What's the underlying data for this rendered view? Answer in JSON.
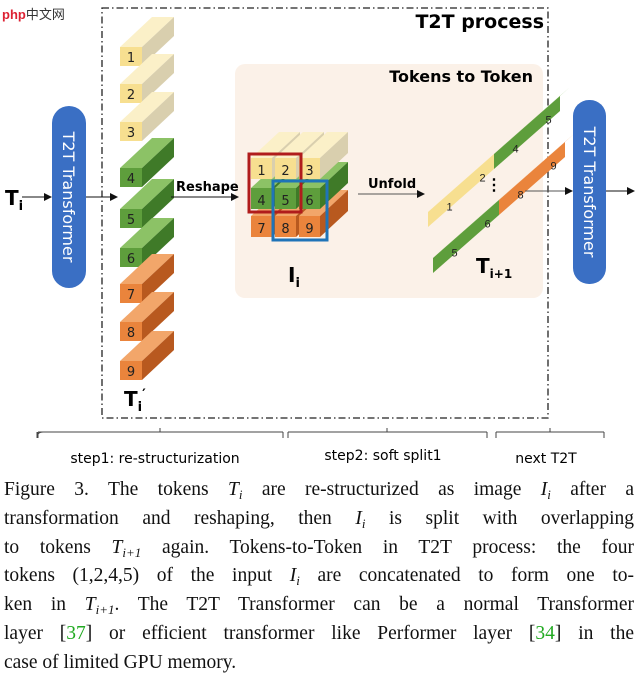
{
  "watermark": {
    "brand": "php",
    "site": "中文网"
  },
  "figure": {
    "process_title": "T2T process",
    "panel_title": "Tokens to Token",
    "input_label": "T",
    "input_sub": "i",
    "transformer_left": "T2T Transformer",
    "transformer_right": "T2T Transformer",
    "reshape_label": "Reshape",
    "unfold_label": "Unfold",
    "column_tokens": [
      "1",
      "2",
      "3",
      "4",
      "5",
      "6",
      "7",
      "8",
      "9"
    ],
    "column_label": "T",
    "column_sub": "i",
    "column_prime": "′",
    "grid_tokens": [
      "1",
      "2",
      "3",
      "4",
      "5",
      "6",
      "7",
      "8",
      "9"
    ],
    "grid_label": "I",
    "grid_sub": "i",
    "output_upper_tokens": [
      "1",
      "2",
      "4",
      "5"
    ],
    "output_lower_tokens": [
      "5",
      "6",
      "8",
      "9"
    ],
    "output_ellipsis": "⋮",
    "output_label": "T",
    "output_sub": "i+1",
    "steps": [
      "step1: re-structurization",
      "step2: soft split1",
      "next T2T"
    ],
    "colors": {
      "yellow": "#f5dc8a",
      "green": "#5f9e3d",
      "orange": "#e9803a",
      "blue": "#3a6fc4",
      "red": "#b01c1c",
      "box_blue": "#1f74b8",
      "panel": "#fbf1e8"
    }
  },
  "caption": {
    "lines": [
      [
        {
          "t": "Figure 3. The tokens "
        },
        {
          "t": "T",
          "i": 1,
          "s": "i"
        },
        {
          "t": " are re-structurized as image "
        },
        {
          "t": "I",
          "i": 1,
          "s": "i"
        },
        {
          "t": " after a"
        }
      ],
      [
        {
          "t": "transformation and reshaping, then "
        },
        {
          "t": "I",
          "i": 1,
          "s": "i"
        },
        {
          "t": " is split with overlapping"
        }
      ],
      [
        {
          "t": "to tokens "
        },
        {
          "t": "T",
          "i": 1,
          "s": "i+1"
        },
        {
          "t": " again. Tokens-to-Token in T2T process: the four"
        }
      ],
      [
        {
          "t": "tokens (1,2,4,5) of the input "
        },
        {
          "t": "I",
          "i": 1,
          "s": "i"
        },
        {
          "t": " are concatenated to form one to-"
        }
      ],
      [
        {
          "t": "ken in "
        },
        {
          "t": "T",
          "i": 1,
          "s": "i+1"
        },
        {
          "t": ". The T2T Transformer can be a normal Transformer"
        }
      ],
      [
        {
          "t": "layer ["
        },
        {
          "t": "37",
          "r": 1
        },
        {
          "t": "] or efficient transformer like Performer layer ["
        },
        {
          "t": "34",
          "r": 1
        },
        {
          "t": "] in the"
        }
      ],
      [
        {
          "t": "case of limited GPU memory."
        }
      ]
    ]
  }
}
